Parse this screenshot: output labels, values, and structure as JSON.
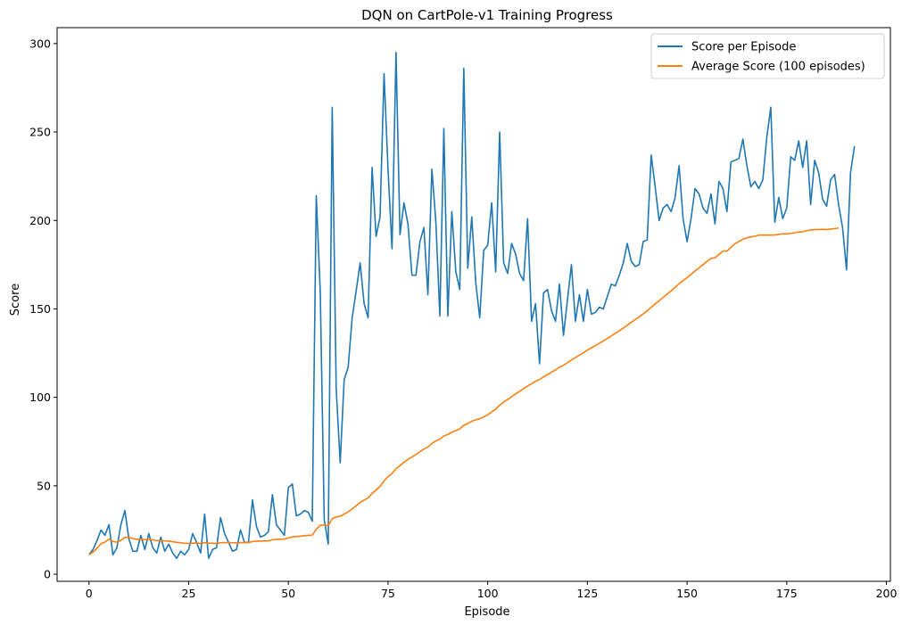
{
  "chart_data": {
    "type": "line",
    "title": "DQN on CartPole-v1 Training Progress",
    "xlabel": "Episode",
    "ylabel": "Score",
    "xlim": [
      -8,
      201
    ],
    "ylim": [
      -4,
      309
    ],
    "xticks": [
      0,
      25,
      50,
      75,
      100,
      125,
      150,
      175,
      200
    ],
    "yticks": [
      0,
      50,
      100,
      150,
      200,
      250,
      300
    ],
    "grid": false,
    "legend_position": "top-right",
    "series": [
      {
        "name": "Score per Episode",
        "color": "#1f77b4",
        "values": [
          11,
          14,
          19,
          25,
          22,
          28,
          11,
          15,
          28,
          36,
          20,
          13,
          13,
          22,
          14,
          23,
          15,
          12,
          21,
          13,
          17,
          12,
          9,
          13,
          11,
          14,
          23,
          18,
          12,
          34,
          9,
          14,
          15,
          32,
          23,
          18,
          13,
          14,
          25,
          18,
          18,
          42,
          27,
          21,
          22,
          24,
          45,
          28,
          25,
          22,
          49,
          51,
          33,
          34,
          36,
          35,
          30,
          214,
          160,
          31,
          17,
          264,
          105,
          63,
          110,
          117,
          145,
          160,
          176,
          153,
          145,
          230,
          191,
          202,
          283,
          229,
          184,
          295,
          192,
          210,
          198,
          169,
          169,
          188,
          196,
          158,
          229,
          199,
          146,
          252,
          146,
          205,
          171,
          161,
          286,
          173,
          202,
          165,
          145,
          183,
          186,
          210,
          171,
          250,
          176,
          170,
          187,
          181,
          170,
          166,
          201,
          143,
          153,
          119,
          159,
          161,
          149,
          143,
          164,
          135,
          155,
          175,
          143,
          158,
          143,
          161,
          147,
          148,
          151,
          150,
          157,
          164,
          163,
          169,
          176,
          187,
          177,
          174,
          175,
          188,
          189,
          237,
          219,
          200,
          207,
          209,
          205,
          213,
          231,
          201,
          188,
          201,
          218,
          215,
          207,
          204,
          215,
          198,
          222,
          218,
          205,
          233,
          234,
          235,
          246,
          231,
          219,
          222,
          218,
          223,
          247,
          264,
          199,
          213,
          201,
          207,
          236,
          234,
          245,
          230,
          245,
          209,
          234,
          227,
          212,
          208,
          223,
          226,
          209,
          196,
          172,
          227,
          242
        ]
      },
      {
        "name": "Average Score (100 episodes)",
        "color": "#ff7f0e",
        "values": [
          11,
          12.5,
          14.7,
          17.3,
          18.2,
          19.8,
          18.6,
          18.1,
          19.2,
          20.9,
          20.8,
          20.2,
          19.7,
          19.9,
          19.5,
          19.7,
          19.4,
          19.0,
          19.1,
          18.8,
          18.7,
          18.4,
          18.0,
          17.8,
          17.5,
          17.4,
          17.6,
          17.6,
          17.4,
          17.9,
          17.6,
          17.5,
          17.4,
          17.8,
          17.9,
          17.9,
          17.8,
          17.7,
          17.9,
          17.9,
          17.9,
          18.5,
          18.7,
          18.7,
          18.8,
          18.9,
          19.5,
          19.7,
          19.8,
          19.9,
          20.5,
          21.1,
          21.3,
          21.5,
          21.8,
          22.0,
          22.1,
          25.4,
          27.7,
          27.7,
          27.5,
          31.4,
          32.4,
          32.8,
          34.0,
          35.3,
          36.9,
          38.7,
          40.6,
          41.9,
          43.1,
          45.7,
          47.6,
          49.6,
          52.8,
          55.1,
          56.9,
          59.7,
          61.4,
          63.3,
          64.9,
          66.3,
          67.7,
          69.2,
          70.8,
          71.9,
          73.9,
          75.4,
          76.3,
          78.2,
          79.0,
          80.3,
          81.2,
          82.2,
          84.2,
          85.2,
          86.5,
          87.3,
          87.9,
          88.9,
          90.1,
          91.8,
          93.3,
          95.6,
          97.3,
          98.8,
          100.4,
          102.0,
          103.4,
          104.9,
          106.4,
          107.7,
          109.1,
          110.1,
          111.5,
          112.9,
          114.2,
          115.5,
          117.0,
          118.1,
          119.6,
          121.1,
          122.4,
          123.9,
          125.2,
          126.7,
          128.0,
          129.3,
          130.6,
          131.9,
          133.3,
          134.7,
          136.2,
          137.6,
          139.1,
          140.8,
          142.4,
          144.0,
          145.5,
          147.2,
          148.9,
          150.9,
          152.8,
          154.6,
          156.5,
          158.4,
          160.2,
          162.2,
          164.2,
          166.0,
          167.7,
          169.5,
          171.4,
          173.2,
          175.0,
          176.8,
          178.6,
          178.9,
          180.8,
          182.7,
          182.7,
          184.8,
          186.8,
          188.1,
          189.4,
          190.2,
          190.7,
          191.1,
          191.7,
          191.7,
          191.7,
          191.7,
          191.8,
          192.1,
          192.5,
          192.4,
          192.7,
          193.0,
          193.5,
          193.6,
          194.2,
          194.6,
          194.8,
          194.9,
          195.0,
          194.8,
          195.1,
          195.4,
          195.7
        ]
      }
    ]
  }
}
